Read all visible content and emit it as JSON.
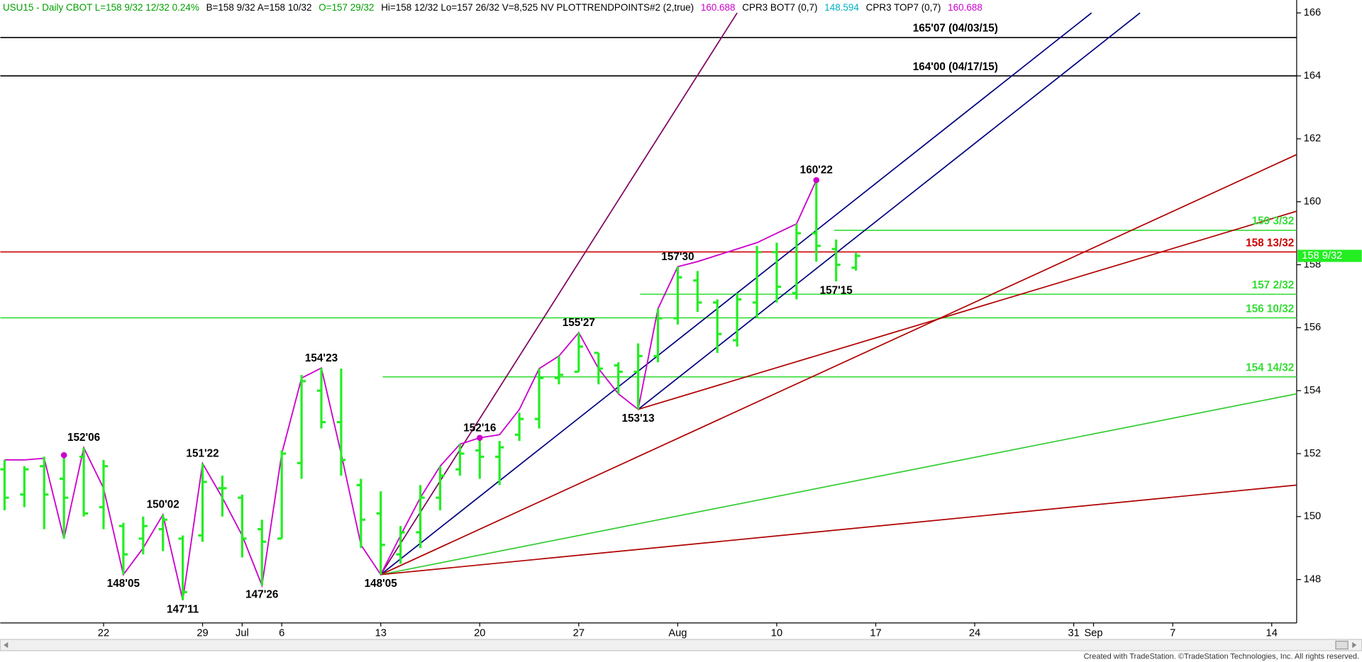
{
  "chart_data": {
    "type": "ohlc",
    "header": [
      {
        "text": "USU15 - Daily  CBOT  L=158 9/32  12/32  0.24%",
        "color": "#00a000"
      },
      {
        "text": "B=158 9/32  A=158 10/32",
        "color": "#000000"
      },
      {
        "text": "O=157 29/32",
        "color": "#00a000"
      },
      {
        "text": "Hi=158 12/32  Lo=157 26/32  V=8,525  NV  PLOTTRENDPOINTS#2 (2,true)",
        "color": "#000000"
      },
      {
        "text": "160.688",
        "color": "#cc00cc"
      },
      {
        "text": "CPR3 BOT7 (0,7)",
        "color": "#000000"
      },
      {
        "text": "148.594",
        "color": "#00b0c0"
      },
      {
        "text": "CPR3 TOP7 (0,7)",
        "color": "#000000"
      },
      {
        "text": "160.688",
        "color": "#cc00cc"
      }
    ],
    "footer": "Created with TradeStation. ©TradeStation Technologies, Inc. All rights reserved.",
    "categories": [
      null,
      null,
      null,
      null,
      null,
      "22",
      null,
      null,
      null,
      null,
      "29",
      null,
      "Jul",
      null,
      "6",
      null,
      null,
      null,
      null,
      "13",
      null,
      null,
      null,
      null,
      "20",
      null,
      null,
      null,
      null,
      "27",
      null,
      null,
      null,
      null,
      "Aug",
      null,
      null,
      null,
      null,
      "10",
      null,
      null,
      null,
      null,
      "17",
      null,
      null,
      null,
      null,
      "24",
      null,
      null,
      null,
      null,
      "31",
      "Sep",
      null,
      null,
      null,
      "7",
      null,
      null,
      null,
      null,
      "14",
      null
    ],
    "color": "#22ee22",
    "open": [
      151.5,
      150.7,
      151.6,
      151.2,
      151.9,
      150.3,
      149.7,
      149.3,
      149.6,
      149.3,
      149.4,
      150.9,
      150.6,
      149.6,
      149.3,
      151.7,
      154.0,
      153.0,
      151.0,
      150.1,
      148.8,
      149.5,
      150.6,
      151.5,
      152.1,
      151.9,
      152.6,
      153.1,
      154.4,
      154.6,
      155.2,
      154.8,
      154.6,
      155.1,
      156.3,
      157.5,
      156.8,
      155.6,
      156.8,
      158.4,
      157.1,
      159.0,
      158.5,
      157.90625,
      null,
      null,
      null,
      null,
      null,
      null,
      null,
      null,
      null,
      null,
      null,
      null,
      null,
      null,
      null,
      null,
      null,
      null,
      null,
      null,
      null,
      null
    ],
    "high": [
      151.8,
      151.6,
      151.9,
      151.9,
      152.1875,
      151.8,
      149.8,
      150.0,
      150.0625,
      149.4,
      151.6875,
      151.3,
      150.7,
      149.9,
      152.1,
      154.5,
      154.71875,
      154.7,
      151.2,
      150.8,
      149.7,
      151.0,
      151.6,
      152.3,
      152.5,
      152.4,
      153.3,
      154.7,
      155.1,
      155.84375,
      155.2,
      154.9,
      155.5,
      156.6,
      157.9375,
      157.8,
      156.9,
      157.1,
      158.6,
      158.7,
      159.3,
      160.6875,
      158.8,
      158.375,
      null,
      null,
      null,
      null,
      null,
      null,
      null,
      null,
      null,
      null,
      null,
      null,
      null,
      null,
      null,
      null,
      null,
      null,
      null,
      null,
      null,
      null
    ],
    "low": [
      150.2,
      150.3,
      149.6,
      149.3,
      150.0,
      149.6,
      148.15625,
      148.8,
      148.9,
      147.34375,
      149.2,
      150.0,
      148.7,
      147.8125,
      149.3,
      151.2,
      152.8,
      151.3,
      149.0,
      148.15625,
      148.5,
      149.0,
      150.2,
      151.3,
      151.2,
      151.0,
      152.4,
      152.8,
      154.2,
      154.6,
      154.2,
      153.9,
      153.40625,
      154.9,
      156.1,
      156.5,
      155.2,
      155.4,
      156.3,
      156.8,
      156.9,
      158.1,
      157.46875,
      157.8125,
      null,
      null,
      null,
      null,
      null,
      null,
      null,
      null,
      null,
      null,
      null,
      null,
      null,
      null,
      null,
      null,
      null,
      null,
      null,
      null,
      null,
      null
    ],
    "close": [
      150.6,
      151.5,
      150.7,
      150.6,
      150.1,
      151.6,
      148.8,
      149.7,
      149.9,
      147.6,
      151.1,
      150.9,
      149.3,
      149.2,
      152.0,
      154.3,
      153.0,
      151.8,
      149.9,
      149.1,
      149.5,
      150.6,
      151.3,
      152.0,
      151.9,
      152.2,
      153.1,
      154.4,
      154.5,
      155.4,
      154.7,
      154.6,
      155.1,
      156.3,
      157.6,
      156.8,
      155.8,
      156.9,
      158.4,
      157.3,
      159.0,
      158.6,
      158.0,
      158.28125,
      null,
      null,
      null,
      null,
      null,
      null,
      null,
      null,
      null,
      null,
      null,
      null,
      null,
      null,
      null,
      null,
      null,
      null,
      null,
      null,
      null,
      null
    ],
    "swing_line": {
      "color": "#cc00cc",
      "values": [
        151.8,
        151.8,
        151.85,
        149.3,
        152.1875,
        150.9,
        148.15625,
        149.0,
        150.0625,
        147.34375,
        151.6875,
        150.6,
        149.4,
        147.8125,
        152.0,
        154.4,
        154.71875,
        152.0,
        149.1,
        148.15625,
        149.4,
        150.6,
        151.6,
        152.3,
        152.5,
        152.6,
        153.4,
        154.7,
        155.1,
        155.84375,
        154.7,
        153.9,
        153.40625,
        156.6,
        157.9375,
        158.1,
        158.3,
        158.5,
        158.7,
        159.0,
        159.3,
        160.6875,
        null,
        null,
        null,
        null,
        null,
        null,
        null,
        null,
        null,
        null,
        null,
        null,
        null,
        null,
        null,
        null,
        null,
        null,
        null,
        null,
        null,
        null,
        null,
        null
      ]
    },
    "pivot_dots": {
      "color": "#cc00cc",
      "values": [
        null,
        null,
        null,
        151.95,
        null,
        null,
        null,
        null,
        null,
        null,
        null,
        null,
        null,
        null,
        null,
        null,
        null,
        null,
        null,
        null,
        null,
        null,
        null,
        null,
        152.5,
        null,
        null,
        null,
        null,
        null,
        null,
        null,
        null,
        null,
        null,
        null,
        null,
        null,
        null,
        null,
        null,
        160.6875,
        null,
        null,
        null,
        null,
        null,
        null,
        null,
        null,
        null,
        null,
        null,
        null,
        null,
        null,
        null,
        null,
        null,
        null,
        null,
        null,
        null,
        null,
        null,
        null
      ]
    },
    "annotations": [
      {
        "label": "152'06",
        "value": 152.1875
      },
      {
        "label": "148'05",
        "value": 148.15625
      },
      {
        "label": "150'02",
        "value": 150.0625
      },
      {
        "label": "147'11",
        "value": 147.34375
      },
      {
        "label": "151'22",
        "value": 151.6875
      },
      {
        "label": "147'26",
        "value": 147.8125
      },
      {
        "label": "154'23",
        "value": 154.71875
      },
      {
        "label": "148'05",
        "value": 148.15625
      },
      {
        "label": "152'16",
        "value": 152.5
      },
      {
        "label": "155'27",
        "value": 155.84375
      },
      {
        "label": "153'13",
        "value": 153.40625
      },
      {
        "label": "157'30",
        "value": 157.9375
      },
      {
        "label": "160'22",
        "value": 160.6875
      },
      {
        "label": "157'15",
        "value": 157.46875
      }
    ],
    "levels": [
      {
        "value": 165.21875,
        "label": "165'07 (04/03/15)",
        "color": "#000000"
      },
      {
        "value": 164,
        "label": "164'00 (04/17/15)",
        "color": "#000000"
      },
      {
        "value": 159.09375,
        "label": "159 3/32",
        "color": "#33dd33"
      },
      {
        "value": 158.40625,
        "label": "158 13/32",
        "color": "#cc0000"
      },
      {
        "value": 157.0625,
        "label": "157 2/32",
        "color": "#33dd33"
      },
      {
        "value": 156.3125,
        "label": "156 10/32",
        "color": "#33dd33"
      },
      {
        "value": 154.4375,
        "label": "154 14/32",
        "color": "#33dd33"
      }
    ],
    "trendlines": [
      {
        "color": "#800060",
        "x": [
          19,
          37
        ],
        "y": [
          148.15625,
          166
        ]
      },
      {
        "color": "#000080",
        "x": [
          19,
          54.9
        ],
        "y": [
          148.15625,
          166
        ]
      },
      {
        "color": "#b00000",
        "x": [
          19,
          65.26
        ],
        "y": [
          148.15625,
          161.5
        ]
      },
      {
        "color": "#33cc33",
        "x": [
          19,
          65.26
        ],
        "y": [
          148.15625,
          153.9
        ]
      },
      {
        "color": "#b00000",
        "x": [
          19,
          65.26
        ],
        "y": [
          148.15625,
          151.0
        ]
      },
      {
        "color": "#000080",
        "x": [
          32,
          57.35
        ],
        "y": [
          153.40625,
          166
        ]
      },
      {
        "color": "#b00000",
        "x": [
          32,
          65.26
        ],
        "y": [
          153.40625,
          159.7
        ]
      }
    ],
    "last_price": {
      "value": 158.28125,
      "label": "158 9/32",
      "color": "#22ee22"
    },
    "xlim": [
      -0.22,
      65.26
    ],
    "ylim": [
      146.62,
      166.41
    ],
    "yticks": [
      148,
      150,
      152,
      154,
      156,
      158,
      160,
      162,
      164,
      166
    ]
  }
}
